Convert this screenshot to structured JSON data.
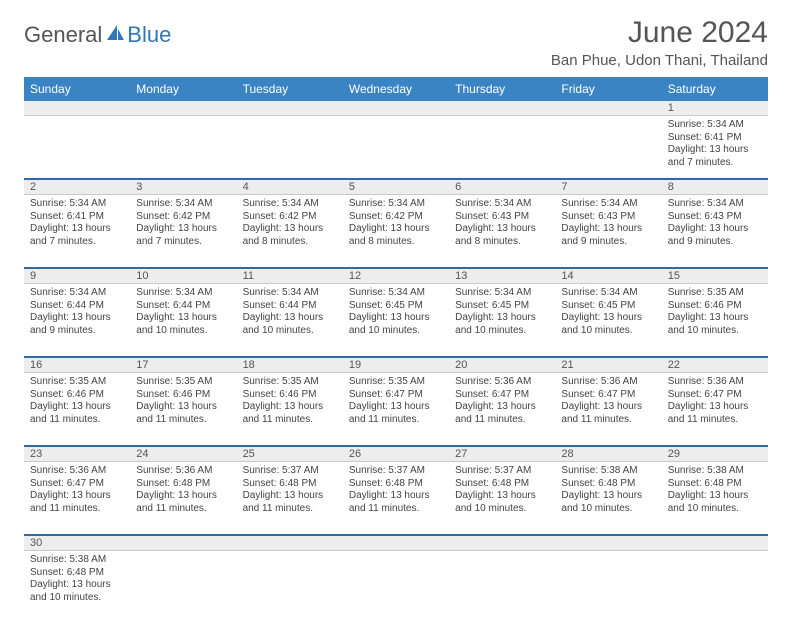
{
  "brand": {
    "general": "General",
    "blue": "Blue"
  },
  "title": "June 2024",
  "location": "Ban Phue, Udon Thani, Thailand",
  "colors": {
    "header_bg": "#3a84c4",
    "row_divider": "#2f6aa3",
    "num_band_bg": "#ededed",
    "logo_blue": "#2f78b7",
    "text": "#444"
  },
  "weekdays": [
    "Sunday",
    "Monday",
    "Tuesday",
    "Wednesday",
    "Thursday",
    "Friday",
    "Saturday"
  ],
  "weeks": [
    [
      null,
      null,
      null,
      null,
      null,
      null,
      {
        "n": 1,
        "sr": "5:34 AM",
        "ss": "6:41 PM",
        "dl": "13 hours and 7 minutes."
      }
    ],
    [
      {
        "n": 2,
        "sr": "5:34 AM",
        "ss": "6:41 PM",
        "dl": "13 hours and 7 minutes."
      },
      {
        "n": 3,
        "sr": "5:34 AM",
        "ss": "6:42 PM",
        "dl": "13 hours and 7 minutes."
      },
      {
        "n": 4,
        "sr": "5:34 AM",
        "ss": "6:42 PM",
        "dl": "13 hours and 8 minutes."
      },
      {
        "n": 5,
        "sr": "5:34 AM",
        "ss": "6:42 PM",
        "dl": "13 hours and 8 minutes."
      },
      {
        "n": 6,
        "sr": "5:34 AM",
        "ss": "6:43 PM",
        "dl": "13 hours and 8 minutes."
      },
      {
        "n": 7,
        "sr": "5:34 AM",
        "ss": "6:43 PM",
        "dl": "13 hours and 9 minutes."
      },
      {
        "n": 8,
        "sr": "5:34 AM",
        "ss": "6:43 PM",
        "dl": "13 hours and 9 minutes."
      }
    ],
    [
      {
        "n": 9,
        "sr": "5:34 AM",
        "ss": "6:44 PM",
        "dl": "13 hours and 9 minutes."
      },
      {
        "n": 10,
        "sr": "5:34 AM",
        "ss": "6:44 PM",
        "dl": "13 hours and 10 minutes."
      },
      {
        "n": 11,
        "sr": "5:34 AM",
        "ss": "6:44 PM",
        "dl": "13 hours and 10 minutes."
      },
      {
        "n": 12,
        "sr": "5:34 AM",
        "ss": "6:45 PM",
        "dl": "13 hours and 10 minutes."
      },
      {
        "n": 13,
        "sr": "5:34 AM",
        "ss": "6:45 PM",
        "dl": "13 hours and 10 minutes."
      },
      {
        "n": 14,
        "sr": "5:34 AM",
        "ss": "6:45 PM",
        "dl": "13 hours and 10 minutes."
      },
      {
        "n": 15,
        "sr": "5:35 AM",
        "ss": "6:46 PM",
        "dl": "13 hours and 10 minutes."
      }
    ],
    [
      {
        "n": 16,
        "sr": "5:35 AM",
        "ss": "6:46 PM",
        "dl": "13 hours and 11 minutes."
      },
      {
        "n": 17,
        "sr": "5:35 AM",
        "ss": "6:46 PM",
        "dl": "13 hours and 11 minutes."
      },
      {
        "n": 18,
        "sr": "5:35 AM",
        "ss": "6:46 PM",
        "dl": "13 hours and 11 minutes."
      },
      {
        "n": 19,
        "sr": "5:35 AM",
        "ss": "6:47 PM",
        "dl": "13 hours and 11 minutes."
      },
      {
        "n": 20,
        "sr": "5:36 AM",
        "ss": "6:47 PM",
        "dl": "13 hours and 11 minutes."
      },
      {
        "n": 21,
        "sr": "5:36 AM",
        "ss": "6:47 PM",
        "dl": "13 hours and 11 minutes."
      },
      {
        "n": 22,
        "sr": "5:36 AM",
        "ss": "6:47 PM",
        "dl": "13 hours and 11 minutes."
      }
    ],
    [
      {
        "n": 23,
        "sr": "5:36 AM",
        "ss": "6:47 PM",
        "dl": "13 hours and 11 minutes."
      },
      {
        "n": 24,
        "sr": "5:36 AM",
        "ss": "6:48 PM",
        "dl": "13 hours and 11 minutes."
      },
      {
        "n": 25,
        "sr": "5:37 AM",
        "ss": "6:48 PM",
        "dl": "13 hours and 11 minutes."
      },
      {
        "n": 26,
        "sr": "5:37 AM",
        "ss": "6:48 PM",
        "dl": "13 hours and 11 minutes."
      },
      {
        "n": 27,
        "sr": "5:37 AM",
        "ss": "6:48 PM",
        "dl": "13 hours and 10 minutes."
      },
      {
        "n": 28,
        "sr": "5:38 AM",
        "ss": "6:48 PM",
        "dl": "13 hours and 10 minutes."
      },
      {
        "n": 29,
        "sr": "5:38 AM",
        "ss": "6:48 PM",
        "dl": "13 hours and 10 minutes."
      }
    ],
    [
      {
        "n": 30,
        "sr": "5:38 AM",
        "ss": "6:48 PM",
        "dl": "13 hours and 10 minutes."
      },
      null,
      null,
      null,
      null,
      null,
      null
    ]
  ],
  "labels": {
    "sunrise": "Sunrise:",
    "sunset": "Sunset:",
    "daylight": "Daylight:"
  }
}
